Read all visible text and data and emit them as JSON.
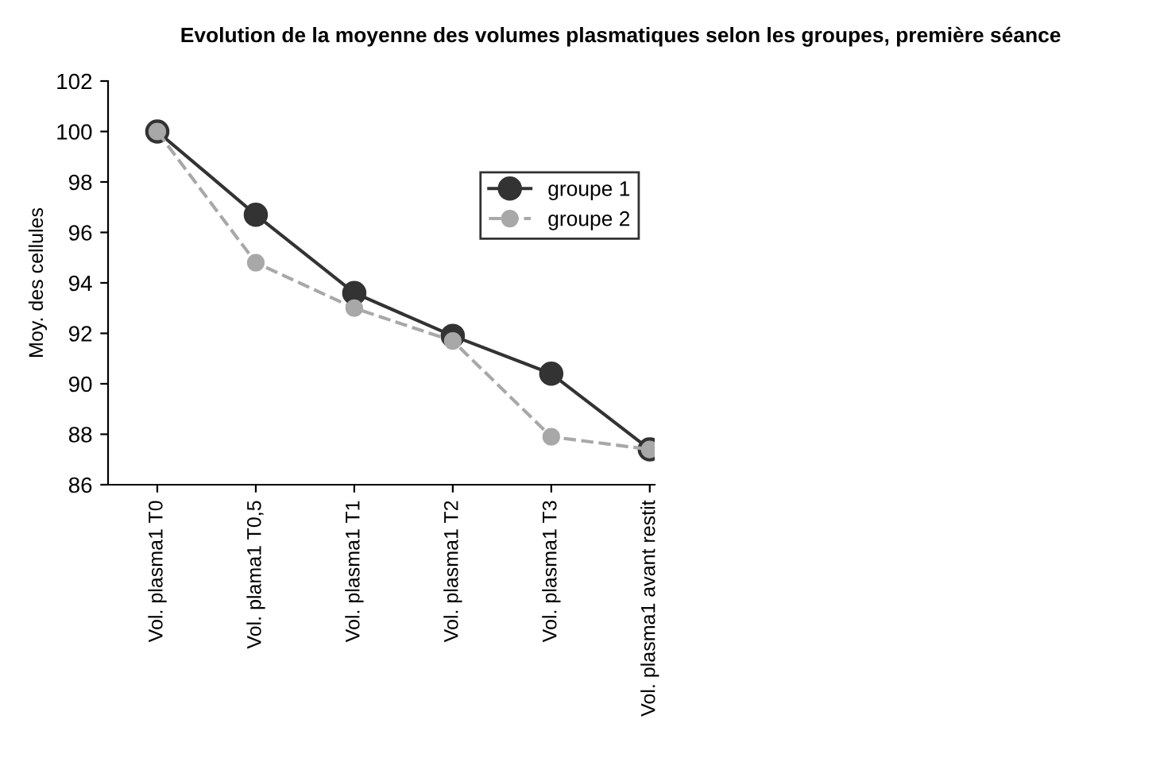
{
  "chart_data": {
    "type": "line",
    "title": "Evolution de la moyenne des volumes plasmatiques selon les groupes, première séance",
    "ylabel": "Moy. des cellules",
    "categories": [
      "Vol. plasma1 T0",
      "Vol. plama1 T0,5",
      "Vol. plasma1 T1",
      "Vol. plasma1 T2",
      "Vol. plasma1 T3",
      "Vol. plasma1 avant restit"
    ],
    "series": [
      {
        "name": "groupe 1",
        "color": "#333333",
        "values": [
          100,
          96.7,
          93.6,
          91.9,
          90.4,
          87.4
        ],
        "line_style": "solid"
      },
      {
        "name": "groupe 2",
        "color": "#a8a8a8",
        "values": [
          100,
          94.8,
          93.0,
          91.7,
          87.9,
          87.4
        ],
        "line_style": "dashed"
      }
    ],
    "ylim": [
      86,
      102
    ],
    "yticks": [
      86,
      88,
      90,
      92,
      94,
      96,
      98,
      100,
      102
    ],
    "marker": "circle",
    "legend": "top right",
    "grid": false
  }
}
